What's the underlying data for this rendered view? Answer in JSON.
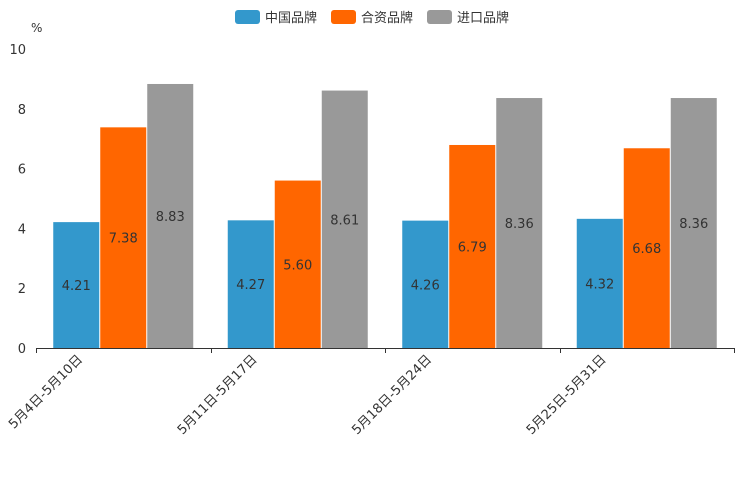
{
  "chart_data": {
    "type": "bar",
    "title": "",
    "xlabel": "",
    "ylabel": "",
    "unit_label": "%",
    "ylim": [
      0,
      10
    ],
    "yticks": [
      0,
      2,
      4,
      6,
      8,
      10
    ],
    "grid": false,
    "legend_position": "top-center",
    "categories": [
      "5月4日-5月10日",
      "5月11日-5月17日",
      "5月18日-5月24日",
      "5月25日-5月31日"
    ],
    "series": [
      {
        "name": "中国品牌",
        "color": "#3398cc",
        "values": [
          4.21,
          4.27,
          4.26,
          4.32
        ],
        "labels": [
          "4.21",
          "4.27",
          "4.26",
          "4.32"
        ]
      },
      {
        "name": "合资品牌",
        "color": "#ff6600",
        "values": [
          7.38,
          5.6,
          6.79,
          6.68
        ],
        "labels": [
          "7.38",
          "5.60",
          "6.79",
          "6.68"
        ]
      },
      {
        "name": "进口品牌",
        "color": "#999999",
        "values": [
          8.83,
          8.61,
          8.36,
          8.36
        ],
        "labels": [
          "8.83",
          "8.61",
          "8.36",
          "8.36"
        ]
      }
    ]
  }
}
